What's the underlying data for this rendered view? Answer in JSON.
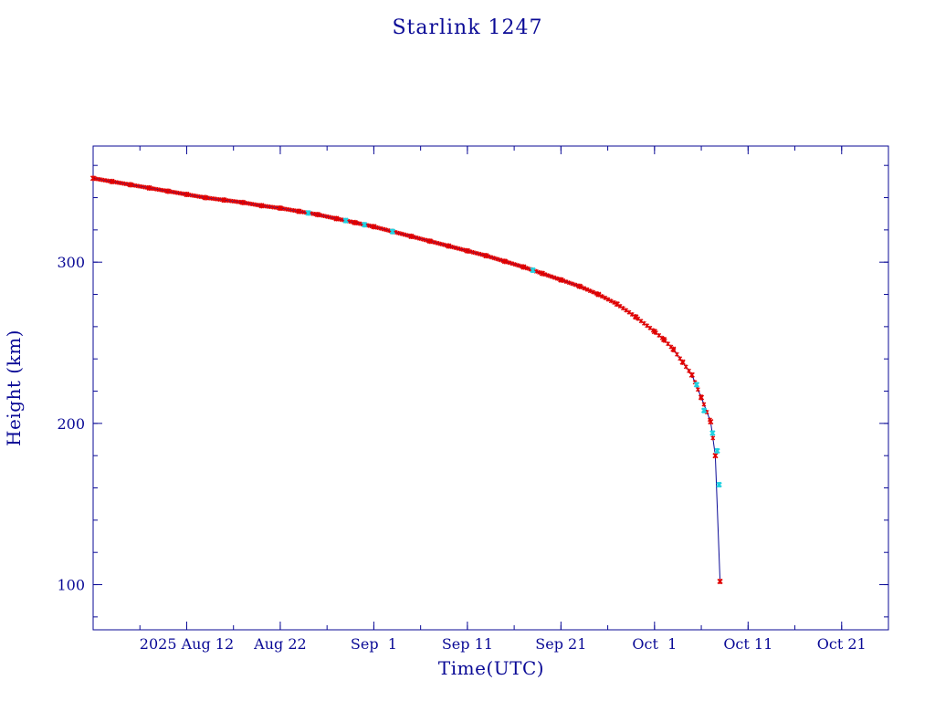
{
  "colors": {
    "axis": "#0a0a96",
    "line": "#0a0a96",
    "marker_primary": "#e00000",
    "marker_secondary": "#20d0e0",
    "background": "#ffffff"
  },
  "chart_data": {
    "type": "line",
    "title": "Starlink 1247",
    "xlabel": "Time(UTC)",
    "ylabel": "Height (km)",
    "x_unit": "date (UTC, 2025)",
    "xlim": [
      "2025-08-02",
      "2025-10-26"
    ],
    "ylim": [
      72,
      372
    ],
    "grid": false,
    "legend": "none",
    "x_ticks": [
      {
        "date": "2025-08-12",
        "label": "2025 Aug 12"
      },
      {
        "date": "2025-08-22",
        "label": "Aug 22"
      },
      {
        "date": "2025-09-01",
        "label": "Sep  1"
      },
      {
        "date": "2025-09-11",
        "label": "Sep 11"
      },
      {
        "date": "2025-09-21",
        "label": "Sep 21"
      },
      {
        "date": "2025-10-01",
        "label": "Oct  1"
      },
      {
        "date": "2025-10-11",
        "label": "Oct 11"
      },
      {
        "date": "2025-10-21",
        "label": "Oct 21"
      }
    ],
    "y_ticks": [
      {
        "value": 100,
        "label": "100"
      },
      {
        "value": 200,
        "label": "200"
      },
      {
        "value": 300,
        "label": "300"
      }
    ],
    "series": [
      {
        "marker_color": "#e00000",
        "points": [
          {
            "x": "2025-08-02",
            "y": 352
          },
          {
            "x": "2025-08-04",
            "y": 350
          },
          {
            "x": "2025-08-06",
            "y": 348
          },
          {
            "x": "2025-08-08",
            "y": 346
          },
          {
            "x": "2025-08-10",
            "y": 344
          },
          {
            "x": "2025-08-12",
            "y": 342
          },
          {
            "x": "2025-08-14",
            "y": 340
          },
          {
            "x": "2025-08-16",
            "y": 338.5
          },
          {
            "x": "2025-08-18",
            "y": 337
          },
          {
            "x": "2025-08-20",
            "y": 335
          },
          {
            "x": "2025-08-22",
            "y": 333.5
          },
          {
            "x": "2025-08-24",
            "y": 331.5
          },
          {
            "x": "2025-08-26",
            "y": 329.5
          },
          {
            "x": "2025-08-28",
            "y": 327
          },
          {
            "x": "2025-08-30",
            "y": 324.5
          },
          {
            "x": "2025-09-01",
            "y": 322
          },
          {
            "x": "2025-09-03",
            "y": 319
          },
          {
            "x": "2025-09-05",
            "y": 316
          },
          {
            "x": "2025-09-07",
            "y": 313
          },
          {
            "x": "2025-09-09",
            "y": 310
          },
          {
            "x": "2025-09-11",
            "y": 307
          },
          {
            "x": "2025-09-13",
            "y": 304
          },
          {
            "x": "2025-09-15",
            "y": 300.5
          },
          {
            "x": "2025-09-17",
            "y": 297
          },
          {
            "x": "2025-09-19",
            "y": 293
          },
          {
            "x": "2025-09-21",
            "y": 289
          },
          {
            "x": "2025-09-23",
            "y": 285
          },
          {
            "x": "2025-09-25",
            "y": 280
          },
          {
            "x": "2025-09-27",
            "y": 274
          },
          {
            "x": "2025-09-29",
            "y": 266
          },
          {
            "x": "2025-10-01",
            "y": 257
          },
          {
            "x": "2025-10-02",
            "y": 252
          },
          {
            "x": "2025-10-03",
            "y": 246
          },
          {
            "x": "2025-10-04",
            "y": 238
          },
          {
            "x": "2025-10-05",
            "y": 230
          },
          {
            "x": "2025-10-06",
            "y": 216
          },
          {
            "x": "2025-10-07",
            "y": 201
          },
          {
            "x": "2025-10-07.5",
            "y": 180
          },
          {
            "x": "2025-10-08",
            "y": 102
          }
        ]
      },
      {
        "marker_color": "#20d0e0",
        "points": [
          {
            "x": "2025-08-25",
            "y": 330.5
          },
          {
            "x": "2025-08-29",
            "y": 325.8
          },
          {
            "x": "2025-08-31",
            "y": 323.2
          },
          {
            "x": "2025-09-03",
            "y": 319
          },
          {
            "x": "2025-09-18",
            "y": 295
          },
          {
            "x": "2025-10-05.5",
            "y": 224
          },
          {
            "x": "2025-10-06.3",
            "y": 208
          },
          {
            "x": "2025-10-07.2",
            "y": 194
          },
          {
            "x": "2025-10-07.7",
            "y": 183
          },
          {
            "x": "2025-10-07.9",
            "y": 162
          }
        ]
      }
    ]
  }
}
